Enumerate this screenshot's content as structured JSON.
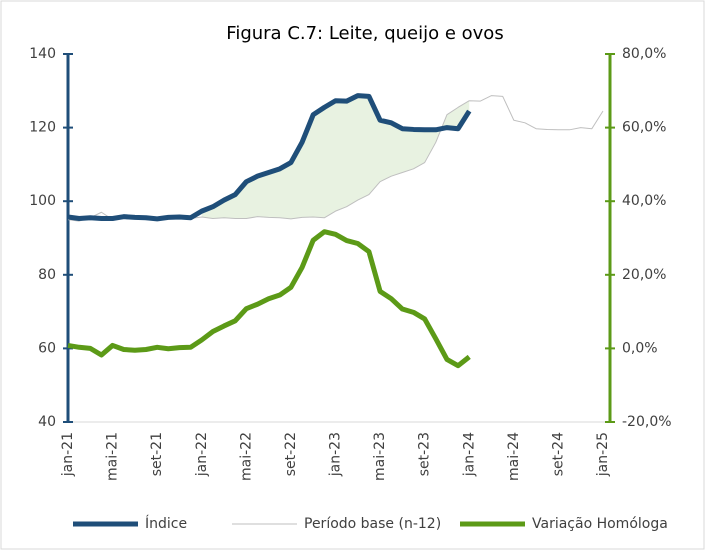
{
  "chart_data": {
    "type": "line",
    "title": "Figura C.7: Leite, queijo e ovos",
    "categories": [
      "jan-21",
      null,
      null,
      null,
      "mai-21",
      null,
      null,
      null,
      "set-21",
      null,
      null,
      null,
      "jan-22",
      null,
      null,
      null,
      "mai-22",
      null,
      null,
      null,
      "set-22",
      null,
      null,
      null,
      "jan-23",
      null,
      null,
      null,
      "mai-23",
      null,
      null,
      null,
      "set-23",
      null,
      null,
      null,
      "jan-24",
      null,
      null,
      null,
      "mai-24",
      null,
      null,
      null,
      "set-24",
      null,
      null,
      null,
      "jan-25"
    ],
    "ylim": [
      40,
      140
    ],
    "yticks": [
      40,
      60,
      80,
      100,
      120,
      140
    ],
    "y2lim": [
      -20,
      80
    ],
    "y2ticks": [
      {
        "value": -20,
        "label": "-20,0%"
      },
      {
        "value": 0,
        "label": "0,0%"
      },
      {
        "value": 20,
        "label": "20,0%"
      },
      {
        "value": 40,
        "label": "40,0%"
      },
      {
        "value": 60,
        "label": "60,0%"
      },
      {
        "value": 80,
        "label": "80,0%"
      }
    ],
    "legend": "bottom",
    "series": [
      {
        "name": "Índice",
        "color": "#1f4e79",
        "values": [
          95.7,
          95.3,
          95.5,
          95.3,
          95.3,
          95.8,
          95.6,
          95.5,
          95.2,
          95.6,
          95.7,
          95.5,
          97.3,
          98.5,
          100.3,
          101.8,
          105.3,
          106.8,
          107.8,
          108.8,
          110.5,
          116,
          123.5,
          125.5,
          127.3,
          127.2,
          128.7,
          128.5,
          122,
          121.3,
          119.7,
          119.5,
          119.4,
          119.4,
          120,
          119.7,
          124.5,
          null,
          null,
          null,
          null,
          null,
          null,
          null,
          null,
          null,
          null,
          null,
          null
        ]
      },
      {
        "name": "Período base (n-12)",
        "color": "#bfbfbf",
        "values": [
          95,
          94.6,
          95.5,
          97,
          95,
          95.3,
          95.3,
          95,
          94.8,
          95.2,
          95.5,
          95.3,
          95.7,
          95.3,
          95.5,
          95.3,
          95.3,
          95.8,
          95.6,
          95.5,
          95.2,
          95.6,
          95.7,
          95.5,
          97.3,
          98.5,
          100.3,
          101.8,
          105.3,
          106.8,
          107.8,
          108.8,
          110.5,
          116,
          123.5,
          125.5,
          127.3,
          127.2,
          128.7,
          128.5,
          122,
          121.3,
          119.7,
          119.5,
          119.4,
          119.4,
          120,
          119.7,
          124.5
        ]
      },
      {
        "name": "Variação Homóloga",
        "color": "#5c9a17",
        "axis": "y2",
        "values": [
          0.8,
          0.3,
          0,
          -1.8,
          0.8,
          -0.3,
          -0.5,
          -0.3,
          0.3,
          -0.1,
          0.2,
          0.3,
          2.3,
          4.6,
          6.1,
          7.5,
          10.8,
          12,
          13.5,
          14.5,
          16.6,
          22,
          29.4,
          31.7,
          31,
          29.3,
          28.5,
          26.3,
          15.5,
          13.5,
          10.7,
          9.8,
          8,
          2.6,
          -3,
          -4.7,
          -2.3,
          null,
          null,
          null,
          null,
          null,
          null,
          null,
          null,
          null,
          null,
          null,
          null
        ]
      }
    ]
  }
}
